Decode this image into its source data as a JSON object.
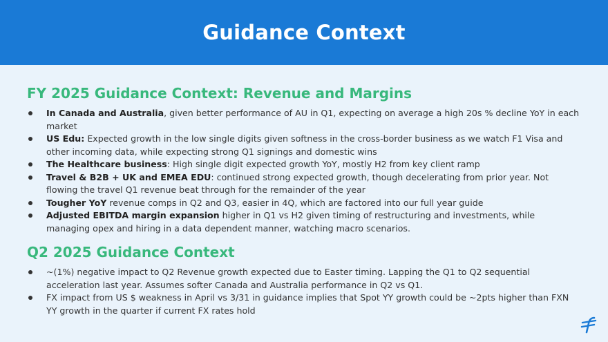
{
  "header": {
    "title": "Guidance Context"
  },
  "section1": {
    "title": "FY 2025 Guidance Context: Revenue and Margins",
    "bullets": [
      {
        "bold": "In Canada and Australia",
        "text": ", given better performance of AU in Q1, expecting on average a high 20s % decline YoY in each market"
      },
      {
        "bold": "US Edu:",
        "text": " Expected growth in the low single digits given softness in the cross-border business as we watch F1 Visa and other incoming data, while expecting strong Q1 signings and domestic wins"
      },
      {
        "bold": "The Healthcare business",
        "text": ": High single digit expected growth YoY, mostly H2 from key client ramp"
      },
      {
        "bold": "Travel & B2B + UK and EMEA EDU",
        "text": ": continued strong expected growth, though decelerating from prior year. Not flowing the travel Q1 revenue beat through for the remainder of the year"
      },
      {
        "bold": "Tougher YoY",
        "text": " revenue comps in Q2 and Q3, easier in 4Q, which are factored into our full year guide"
      },
      {
        "bold": "Adjusted EBITDA margin expansion",
        "text": " higher in Q1 vs H2 given timing of restructuring and investments, while managing opex and hiring in a data dependent manner, watching macro scenarios."
      }
    ]
  },
  "section2": {
    "title": "Q2 2025 Guidance Context",
    "bullets": [
      {
        "text": "~(1%) negative impact to Q2 Revenue growth expected due to Easter timing. Lapping the Q1 to Q2 sequential acceleration last year. Assumes softer Canada and Australia performance in Q2 vs Q1."
      },
      {
        "text": "FX impact from US $ weakness in April vs 3/31 in guidance implies that Spot YY growth could be ~2pts higher than FXN YY growth in the quarter if current FX rates hold"
      }
    ]
  },
  "logo": {
    "icon": "flywire-logo-icon",
    "color": "#1a7ad6"
  },
  "colors": {
    "header_bg": "#1a7ad6",
    "section_title": "#38b87c",
    "page_bg": "#eaf3fb"
  }
}
